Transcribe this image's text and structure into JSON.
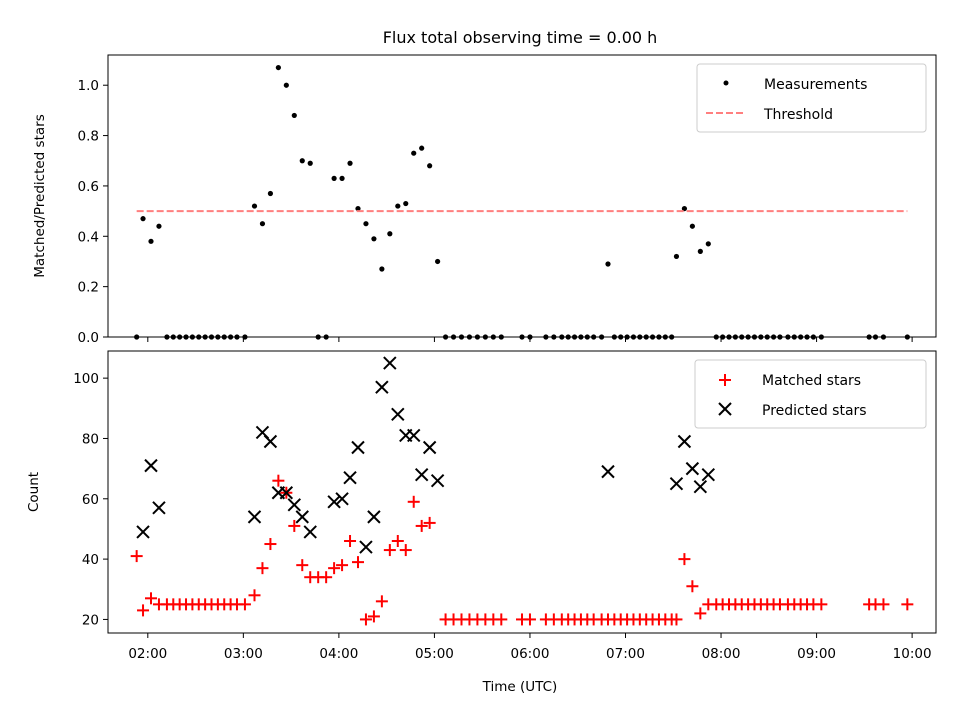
{
  "figure": {
    "title": "Flux total observing time = 0.00 h",
    "xlabel": "Time (UTC)"
  },
  "chart_data": [
    {
      "type": "scatter",
      "ylabel": "Matched/Predicted stars",
      "xlim": [
        "01:35",
        "10:15"
      ],
      "ylim": [
        0,
        1.12
      ],
      "yticks": [
        0.0,
        0.2,
        0.4,
        0.6,
        0.8,
        1.0
      ],
      "ytick_labels": [
        "0.0",
        "0.2",
        "0.4",
        "0.6",
        "0.8",
        "1.0"
      ],
      "xticks": [
        "02:00",
        "03:00",
        "04:00",
        "05:00",
        "06:00",
        "07:00",
        "08:00",
        "09:00",
        "10:00"
      ],
      "legend_position": "top-right",
      "grid": false,
      "series": [
        {
          "name": "Measurements",
          "marker": "dot",
          "color": "#000000",
          "points": [
            [
              "01:53",
              0
            ],
            [
              "01:57",
              0.47
            ],
            [
              "02:02",
              0.38
            ],
            [
              "02:07",
              0.44
            ],
            [
              "02:12",
              0
            ],
            [
              "02:16",
              0
            ],
            [
              "02:20",
              0
            ],
            [
              "02:24",
              0
            ],
            [
              "02:28",
              0
            ],
            [
              "02:32",
              0
            ],
            [
              "02:36",
              0
            ],
            [
              "02:40",
              0
            ],
            [
              "02:44",
              0
            ],
            [
              "02:48",
              0
            ],
            [
              "02:52",
              0
            ],
            [
              "02:56",
              0
            ],
            [
              "03:01",
              0
            ],
            [
              "03:07",
              0.52
            ],
            [
              "03:12",
              0.45
            ],
            [
              "03:17",
              0.57
            ],
            [
              "03:22",
              1.07
            ],
            [
              "03:27",
              1.0
            ],
            [
              "03:32",
              0.88
            ],
            [
              "03:37",
              0.7
            ],
            [
              "03:42",
              0.69
            ],
            [
              "03:47",
              0
            ],
            [
              "03:52",
              0
            ],
            [
              "03:57",
              0.63
            ],
            [
              "04:02",
              0.63
            ],
            [
              "04:07",
              0.69
            ],
            [
              "04:12",
              0.51
            ],
            [
              "04:17",
              0.45
            ],
            [
              "04:22",
              0.39
            ],
            [
              "04:27",
              0.27
            ],
            [
              "04:32",
              0.41
            ],
            [
              "04:37",
              0.52
            ],
            [
              "04:42",
              0.53
            ],
            [
              "04:47",
              0.73
            ],
            [
              "04:52",
              0.75
            ],
            [
              "04:57",
              0.68
            ],
            [
              "05:02",
              0.3
            ],
            [
              "05:07",
              0
            ],
            [
              "05:12",
              0
            ],
            [
              "05:17",
              0
            ],
            [
              "05:22",
              0
            ],
            [
              "05:27",
              0
            ],
            [
              "05:32",
              0
            ],
            [
              "05:37",
              0
            ],
            [
              "05:42",
              0
            ],
            [
              "05:55",
              0
            ],
            [
              "06:00",
              0
            ],
            [
              "06:10",
              0
            ],
            [
              "06:15",
              0
            ],
            [
              "06:20",
              0
            ],
            [
              "06:24",
              0
            ],
            [
              "06:28",
              0
            ],
            [
              "06:32",
              0
            ],
            [
              "06:36",
              0
            ],
            [
              "06:40",
              0
            ],
            [
              "06:45",
              0
            ],
            [
              "06:49",
              0.29
            ],
            [
              "06:53",
              0
            ],
            [
              "06:57",
              0
            ],
            [
              "07:01",
              0
            ],
            [
              "07:05",
              0
            ],
            [
              "07:09",
              0
            ],
            [
              "07:13",
              0
            ],
            [
              "07:17",
              0
            ],
            [
              "07:21",
              0
            ],
            [
              "07:25",
              0
            ],
            [
              "07:29",
              0
            ],
            [
              "07:32",
              0.32
            ],
            [
              "07:37",
              0.51
            ],
            [
              "07:42",
              0.44
            ],
            [
              "07:47",
              0.34
            ],
            [
              "07:52",
              0.37
            ],
            [
              "07:57",
              0
            ],
            [
              "08:01",
              0
            ],
            [
              "08:05",
              0
            ],
            [
              "08:09",
              0
            ],
            [
              "08:13",
              0
            ],
            [
              "08:17",
              0
            ],
            [
              "08:21",
              0
            ],
            [
              "08:25",
              0
            ],
            [
              "08:29",
              0
            ],
            [
              "08:33",
              0
            ],
            [
              "08:37",
              0
            ],
            [
              "08:42",
              0
            ],
            [
              "08:46",
              0
            ],
            [
              "08:50",
              0
            ],
            [
              "08:54",
              0
            ],
            [
              "08:58",
              0
            ],
            [
              "09:03",
              0
            ],
            [
              "09:33",
              0
            ],
            [
              "09:37",
              0
            ],
            [
              "09:42",
              0
            ],
            [
              "09:57",
              0
            ]
          ]
        },
        {
          "name": "Threshold",
          "style": "dashed-line",
          "color": "#ff7f7f",
          "points": [
            [
              "01:53",
              0.5
            ],
            [
              "09:57",
              0.5
            ]
          ]
        }
      ]
    },
    {
      "type": "scatter",
      "ylabel": "Count",
      "xlim": [
        "01:35",
        "10:15"
      ],
      "ylim": [
        15.5,
        109
      ],
      "yticks": [
        20,
        40,
        60,
        80,
        100
      ],
      "ytick_labels": [
        "20",
        "40",
        "60",
        "80",
        "100"
      ],
      "xticks": [
        "02:00",
        "03:00",
        "04:00",
        "05:00",
        "06:00",
        "07:00",
        "08:00",
        "09:00",
        "10:00"
      ],
      "xtick_labels": [
        "02:00",
        "03:00",
        "04:00",
        "05:00",
        "06:00",
        "07:00",
        "08:00",
        "09:00",
        "10:00"
      ],
      "legend_position": "top-right",
      "grid": false,
      "series": [
        {
          "name": "Matched stars",
          "marker": "plus",
          "color": "#ff0000",
          "points": [
            [
              "01:53",
              41
            ],
            [
              "01:57",
              23
            ],
            [
              "02:02",
              27
            ],
            [
              "02:07",
              25
            ],
            [
              "02:12",
              25
            ],
            [
              "02:16",
              25
            ],
            [
              "02:20",
              25
            ],
            [
              "02:24",
              25
            ],
            [
              "02:28",
              25
            ],
            [
              "02:32",
              25
            ],
            [
              "02:36",
              25
            ],
            [
              "02:40",
              25
            ],
            [
              "02:44",
              25
            ],
            [
              "02:48",
              25
            ],
            [
              "02:52",
              25
            ],
            [
              "02:56",
              25
            ],
            [
              "03:01",
              25
            ],
            [
              "03:07",
              28
            ],
            [
              "03:12",
              37
            ],
            [
              "03:17",
              45
            ],
            [
              "03:22",
              66
            ],
            [
              "03:27",
              62
            ],
            [
              "03:32",
              51
            ],
            [
              "03:37",
              38
            ],
            [
              "03:42",
              34
            ],
            [
              "03:47",
              34
            ],
            [
              "03:52",
              34
            ],
            [
              "03:57",
              37
            ],
            [
              "04:02",
              38
            ],
            [
              "04:07",
              46
            ],
            [
              "04:12",
              39
            ],
            [
              "04:17",
              20
            ],
            [
              "04:22",
              21
            ],
            [
              "04:27",
              26
            ],
            [
              "04:32",
              43
            ],
            [
              "04:37",
              46
            ],
            [
              "04:42",
              43
            ],
            [
              "04:47",
              59
            ],
            [
              "04:52",
              51
            ],
            [
              "04:57",
              52
            ],
            [
              "05:07",
              20
            ],
            [
              "05:12",
              20
            ],
            [
              "05:17",
              20
            ],
            [
              "05:22",
              20
            ],
            [
              "05:27",
              20
            ],
            [
              "05:32",
              20
            ],
            [
              "05:37",
              20
            ],
            [
              "05:42",
              20
            ],
            [
              "05:55",
              20
            ],
            [
              "06:00",
              20
            ],
            [
              "06:10",
              20
            ],
            [
              "06:15",
              20
            ],
            [
              "06:20",
              20
            ],
            [
              "06:24",
              20
            ],
            [
              "06:28",
              20
            ],
            [
              "06:32",
              20
            ],
            [
              "06:36",
              20
            ],
            [
              "06:40",
              20
            ],
            [
              "06:45",
              20
            ],
            [
              "06:49",
              20
            ],
            [
              "06:53",
              20
            ],
            [
              "06:57",
              20
            ],
            [
              "07:01",
              20
            ],
            [
              "07:05",
              20
            ],
            [
              "07:09",
              20
            ],
            [
              "07:13",
              20
            ],
            [
              "07:17",
              20
            ],
            [
              "07:21",
              20
            ],
            [
              "07:25",
              20
            ],
            [
              "07:29",
              20
            ],
            [
              "07:32",
              20
            ],
            [
              "07:37",
              40
            ],
            [
              "07:42",
              31
            ],
            [
              "07:47",
              22
            ],
            [
              "07:52",
              25
            ],
            [
              "07:57",
              25
            ],
            [
              "08:01",
              25
            ],
            [
              "08:05",
              25
            ],
            [
              "08:09",
              25
            ],
            [
              "08:13",
              25
            ],
            [
              "08:17",
              25
            ],
            [
              "08:21",
              25
            ],
            [
              "08:25",
              25
            ],
            [
              "08:29",
              25
            ],
            [
              "08:33",
              25
            ],
            [
              "08:37",
              25
            ],
            [
              "08:42",
              25
            ],
            [
              "08:46",
              25
            ],
            [
              "08:50",
              25
            ],
            [
              "08:54",
              25
            ],
            [
              "08:58",
              25
            ],
            [
              "09:03",
              25
            ],
            [
              "09:33",
              25
            ],
            [
              "09:37",
              25
            ],
            [
              "09:42",
              25
            ],
            [
              "09:57",
              25
            ]
          ]
        },
        {
          "name": "Predicted stars",
          "marker": "x",
          "color": "#000000",
          "points": [
            [
              "01:57",
              49
            ],
            [
              "02:02",
              71
            ],
            [
              "02:07",
              57
            ],
            [
              "03:07",
              54
            ],
            [
              "03:12",
              82
            ],
            [
              "03:17",
              79
            ],
            [
              "03:22",
              62
            ],
            [
              "03:27",
              62
            ],
            [
              "03:32",
              58
            ],
            [
              "03:37",
              54
            ],
            [
              "03:42",
              49
            ],
            [
              "03:57",
              59
            ],
            [
              "04:02",
              60
            ],
            [
              "04:07",
              67
            ],
            [
              "04:12",
              77
            ],
            [
              "04:17",
              44
            ],
            [
              "04:22",
              54
            ],
            [
              "04:27",
              97
            ],
            [
              "04:32",
              105
            ],
            [
              "04:37",
              88
            ],
            [
              "04:42",
              81
            ],
            [
              "04:47",
              81
            ],
            [
              "04:52",
              68
            ],
            [
              "04:57",
              77
            ],
            [
              "05:02",
              66
            ],
            [
              "06:49",
              69
            ],
            [
              "07:32",
              65
            ],
            [
              "07:37",
              79
            ],
            [
              "07:42",
              70
            ],
            [
              "07:47",
              64
            ],
            [
              "07:52",
              68
            ]
          ]
        }
      ]
    }
  ]
}
